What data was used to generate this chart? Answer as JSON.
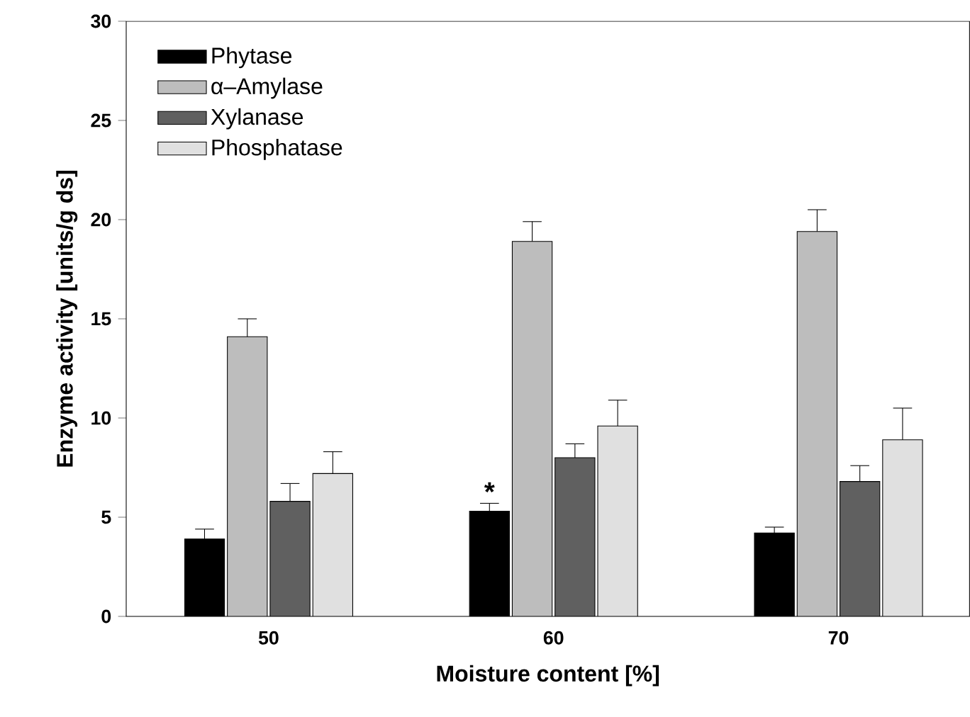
{
  "chart_data": {
    "type": "bar",
    "xlabel": "Moisture content [%]",
    "ylabel": "Enzyme activity [units/g ds]",
    "categories": [
      "50",
      "60",
      "70"
    ],
    "series": [
      {
        "name": "Phytase",
        "color": "#000000",
        "values": [
          3.9,
          5.3,
          4.2
        ],
        "errors": [
          [
            3.9,
            4.4
          ],
          [
            5.3,
            5.7
          ],
          [
            4.2,
            4.5
          ]
        ]
      },
      {
        "name": "α–Amylase",
        "color": "#bdbdbd",
        "values": [
          14.1,
          18.9,
          19.4
        ],
        "errors": [
          [
            14.1,
            15.0
          ],
          [
            18.9,
            19.9
          ],
          [
            19.4,
            20.5
          ]
        ]
      },
      {
        "name": "Xylanase",
        "color": "#606060",
        "values": [
          5.8,
          8.0,
          6.8
        ],
        "errors": [
          [
            5.8,
            6.7
          ],
          [
            8.0,
            8.7
          ],
          [
            6.8,
            7.6
          ]
        ]
      },
      {
        "name": "Phosphatase",
        "color": "#e0e0e0",
        "values": [
          7.2,
          9.6,
          8.9
        ],
        "errors": [
          [
            7.2,
            8.3
          ],
          [
            9.6,
            10.9
          ],
          [
            8.9,
            10.5
          ]
        ]
      }
    ],
    "annotations": [
      {
        "text": "*",
        "x": "60",
        "y": 5.7
      }
    ],
    "ylim": [
      0,
      30
    ],
    "yticks": [
      0,
      5,
      10,
      15,
      20,
      25,
      30
    ],
    "legend": "top left",
    "grid": false
  }
}
